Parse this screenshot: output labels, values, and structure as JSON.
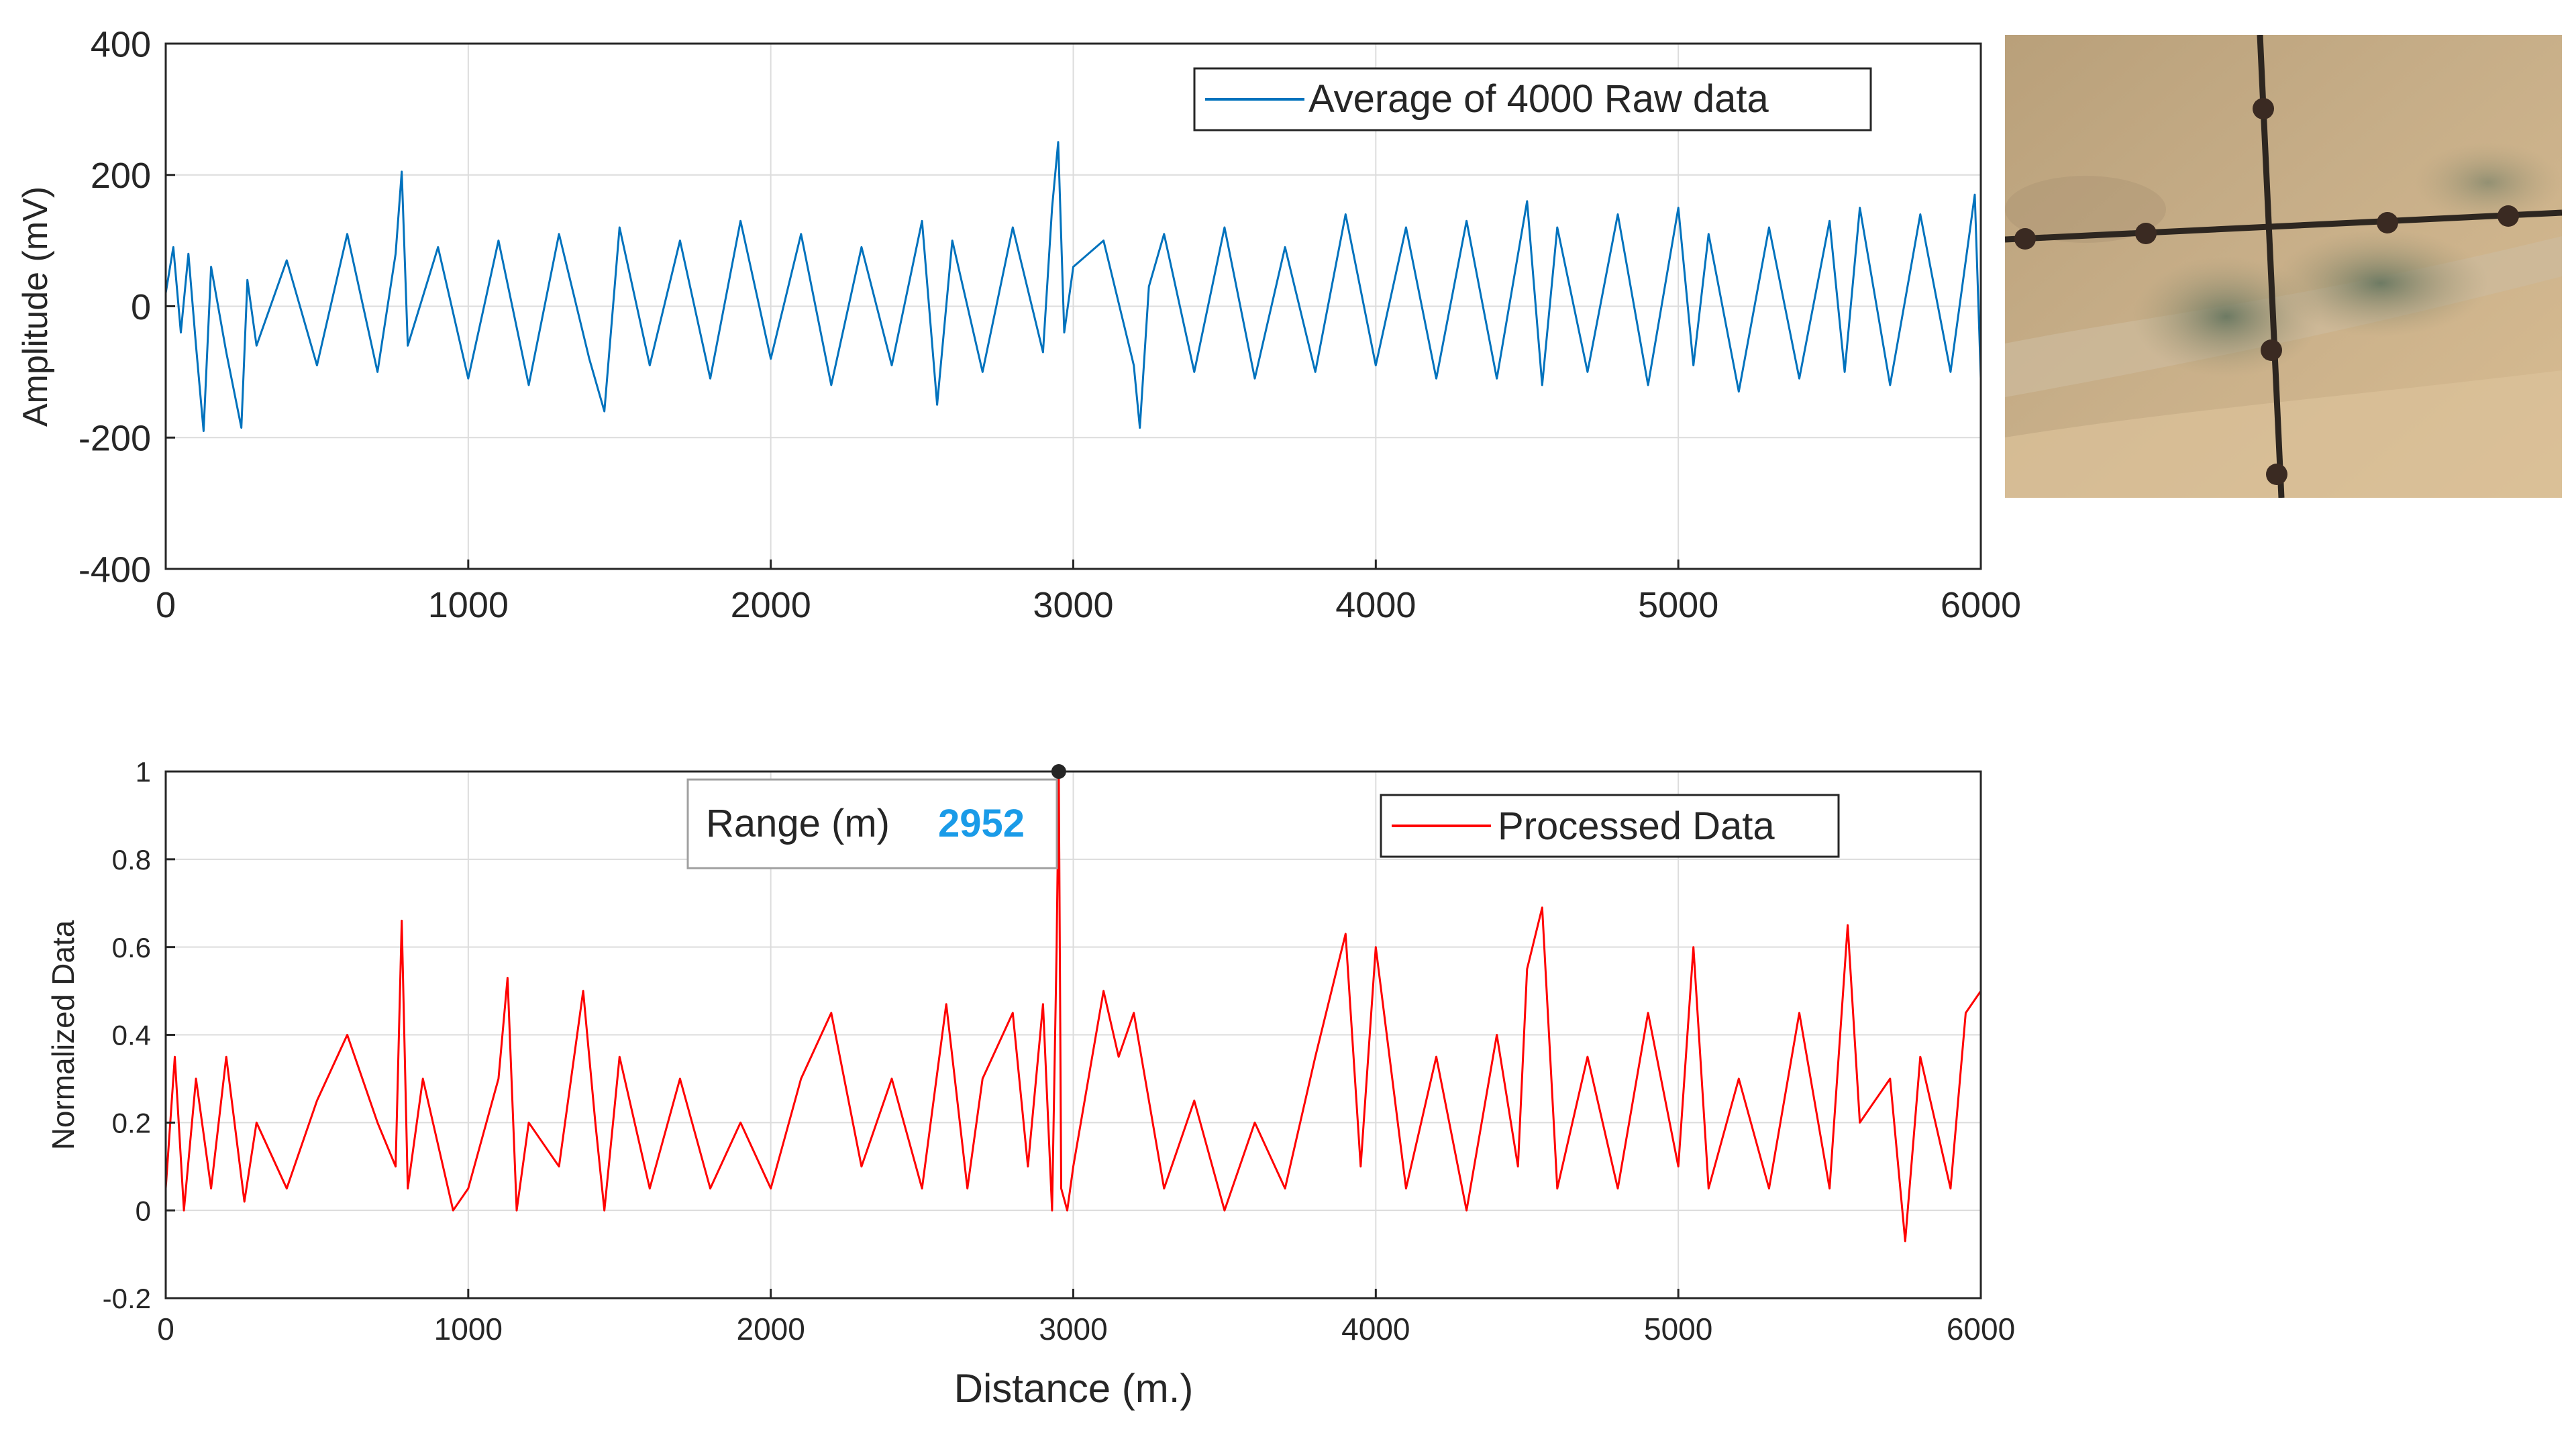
{
  "chart_data": [
    {
      "type": "line",
      "title": "",
      "xlabel": "",
      "ylabel": "Amplitude (mV)",
      "xlim": [
        0,
        6000
      ],
      "ylim": [
        -400,
        400
      ],
      "xticks": [
        "0",
        "1000",
        "2000",
        "3000",
        "4000",
        "5000",
        "6000"
      ],
      "yticks": [
        "-400",
        "-200",
        "0",
        "200",
        "400"
      ],
      "grid": true,
      "legend_position": "top-right",
      "series": [
        {
          "name": "Average of 4000 Raw data",
          "color": "#0072BD",
          "x": [
            0,
            25,
            50,
            75,
            100,
            125,
            150,
            200,
            250,
            270,
            300,
            400,
            500,
            600,
            700,
            760,
            780,
            800,
            900,
            1000,
            1100,
            1200,
            1300,
            1400,
            1450,
            1500,
            1600,
            1700,
            1800,
            1900,
            2000,
            2100,
            2200,
            2300,
            2400,
            2500,
            2550,
            2600,
            2700,
            2800,
            2900,
            2930,
            2950,
            2970,
            3000,
            3100,
            3200,
            3220,
            3250,
            3300,
            3400,
            3500,
            3600,
            3700,
            3800,
            3900,
            4000,
            4100,
            4200,
            4300,
            4400,
            4500,
            4550,
            4600,
            4700,
            4800,
            4900,
            5000,
            5050,
            5100,
            5200,
            5300,
            5400,
            5500,
            5550,
            5600,
            5700,
            5800,
            5900,
            5980,
            6000
          ],
          "values": [
            20,
            90,
            -40,
            80,
            -60,
            -190,
            60,
            -70,
            -185,
            40,
            -60,
            70,
            -90,
            110,
            -100,
            80,
            205,
            -60,
            90,
            -110,
            100,
            -120,
            110,
            -80,
            -160,
            120,
            -90,
            100,
            -110,
            130,
            -80,
            110,
            -120,
            90,
            -90,
            130,
            -150,
            100,
            -100,
            120,
            -70,
            150,
            250,
            -40,
            60,
            100,
            -90,
            -185,
            30,
            110,
            -100,
            120,
            -110,
            90,
            -100,
            140,
            -90,
            120,
            -110,
            130,
            -110,
            160,
            -120,
            120,
            -100,
            140,
            -120,
            150,
            -90,
            110,
            -130,
            120,
            -110,
            130,
            -100,
            150,
            -120,
            140,
            -100,
            170,
            -110
          ]
        }
      ]
    },
    {
      "type": "line",
      "title": "",
      "xlabel": "Distance (m.)",
      "ylabel": "Normalized Data",
      "xlim": [
        0,
        6000
      ],
      "ylim": [
        -0.2,
        1
      ],
      "xticks": [
        "0",
        "1000",
        "2000",
        "3000",
        "4000",
        "5000",
        "6000"
      ],
      "yticks": [
        "-0.2",
        "0",
        "0.2",
        "0.4",
        "0.6",
        "0.8",
        "1"
      ],
      "grid": true,
      "legend_position": "top-right",
      "series": [
        {
          "name": "Processed Data",
          "color": "#FF0000",
          "x": [
            0,
            30,
            60,
            100,
            150,
            200,
            260,
            300,
            400,
            500,
            600,
            700,
            760,
            780,
            800,
            850,
            950,
            1000,
            1100,
            1130,
            1160,
            1200,
            1300,
            1380,
            1420,
            1450,
            1500,
            1600,
            1700,
            1800,
            1900,
            2000,
            2100,
            2200,
            2300,
            2400,
            2500,
            2580,
            2650,
            2700,
            2800,
            2850,
            2900,
            2930,
            2945,
            2952,
            2960,
            2980,
            3000,
            3100,
            3150,
            3200,
            3300,
            3400,
            3500,
            3600,
            3700,
            3800,
            3900,
            3950,
            4000,
            4100,
            4200,
            4300,
            4400,
            4470,
            4500,
            4550,
            4600,
            4700,
            4800,
            4900,
            5000,
            5050,
            5100,
            5200,
            5300,
            5400,
            5500,
            5560,
            5600,
            5700,
            5750,
            5800,
            5900,
            5950,
            6000
          ],
          "values": [
            0.05,
            0.35,
            0.0,
            0.3,
            0.05,
            0.35,
            0.02,
            0.2,
            0.05,
            0.25,
            0.4,
            0.2,
            0.1,
            0.66,
            0.05,
            0.3,
            0.0,
            0.05,
            0.3,
            0.53,
            0.0,
            0.2,
            0.1,
            0.5,
            0.2,
            0.0,
            0.35,
            0.05,
            0.3,
            0.05,
            0.2,
            0.05,
            0.3,
            0.45,
            0.1,
            0.3,
            0.05,
            0.47,
            0.05,
            0.3,
            0.45,
            0.1,
            0.47,
            0.0,
            0.6,
            1.0,
            0.05,
            0.0,
            0.1,
            0.5,
            0.35,
            0.45,
            0.05,
            0.25,
            0.0,
            0.2,
            0.05,
            0.35,
            0.63,
            0.1,
            0.6,
            0.05,
            0.35,
            0.0,
            0.4,
            0.1,
            0.55,
            0.69,
            0.05,
            0.35,
            0.05,
            0.45,
            0.1,
            0.6,
            0.05,
            0.3,
            0.05,
            0.45,
            0.05,
            0.65,
            0.2,
            0.3,
            -0.07,
            0.35,
            0.05,
            0.45,
            0.5
          ]
        }
      ],
      "datatip": {
        "label": "Range (m)",
        "value": "2952",
        "x": 2952,
        "y": 1.0,
        "value_color": "#1A9BE8"
      }
    }
  ],
  "photo": {
    "description_icon": "crosshair-reticle-icon"
  }
}
